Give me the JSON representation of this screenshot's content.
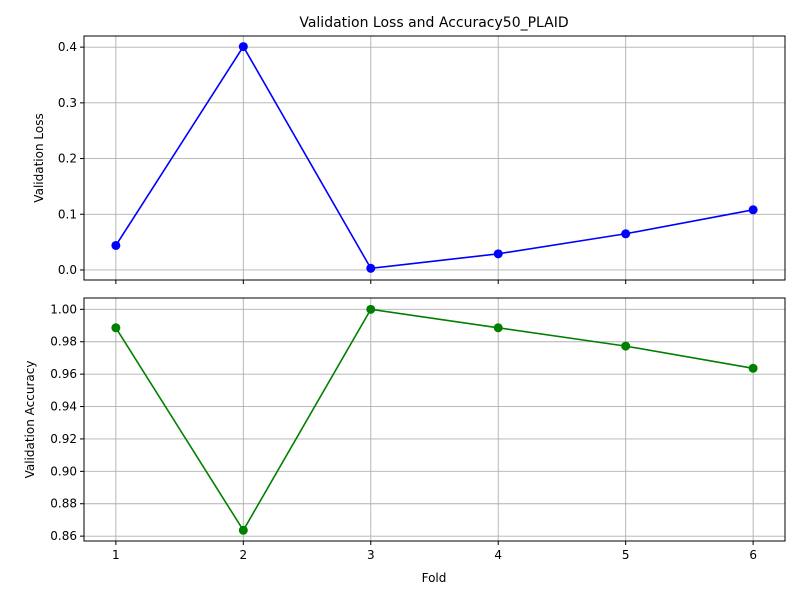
{
  "chart_data": {
    "type": "line",
    "title": "Validation Loss and Accuracy50_PLAID",
    "xlabel": "Fold",
    "x": [
      1,
      2,
      3,
      4,
      5,
      6
    ],
    "grid": true,
    "subplots": [
      {
        "ylabel": "Validation Loss",
        "ylim": [
          -0.018,
          0.42
        ],
        "yticks": [
          0.0,
          0.1,
          0.2,
          0.3,
          0.4
        ],
        "ytick_labels": [
          "0.0",
          "0.1",
          "0.2",
          "0.3",
          "0.4"
        ],
        "color": "#0000ff",
        "values": [
          0.044,
          0.401,
          0.003,
          0.029,
          0.065,
          0.108
        ]
      },
      {
        "ylabel": "Validation Accuracy",
        "ylim": [
          0.857,
          1.007
        ],
        "yticks": [
          0.86,
          0.88,
          0.9,
          0.92,
          0.94,
          0.96,
          0.98,
          1.0
        ],
        "ytick_labels": [
          "0.86",
          "0.88",
          "0.90",
          "0.92",
          "0.94",
          "0.96",
          "0.98",
          "1.00"
        ],
        "color": "#008000",
        "values": [
          0.9886,
          0.8636,
          1.0,
          0.9886,
          0.9773,
          0.9636
        ]
      }
    ],
    "xticks": [
      1,
      2,
      3,
      4,
      5,
      6
    ],
    "xtick_labels": [
      "1",
      "2",
      "3",
      "4",
      "5",
      "6"
    ]
  }
}
